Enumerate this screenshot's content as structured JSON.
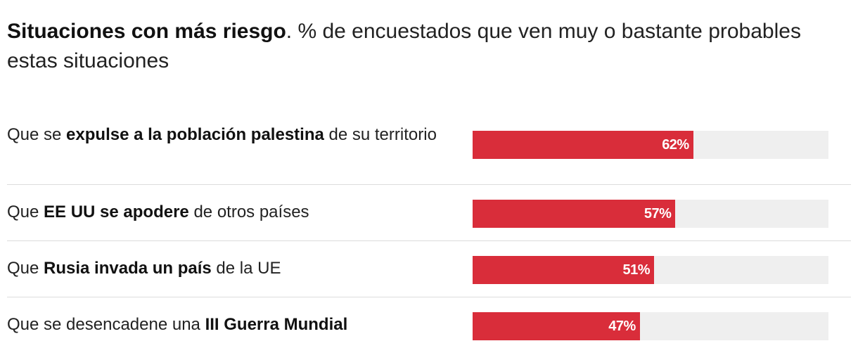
{
  "title": {
    "bold": "Situaciones con más riesgo",
    "rest": ". % de encuestados que ven muy o bastante probables estas situaciones"
  },
  "colors": {
    "bar": "#d92d3a",
    "track": "#efefef"
  },
  "chart_data": {
    "type": "bar",
    "orientation": "horizontal",
    "categories": [
      "Que se expulse a la población palestina de su territorio",
      "Que EE UU se apodere de otros países",
      "Que Rusia invada un país de la UE",
      "Que se desencadene una III Guerra Mundial"
    ],
    "values": [
      62,
      57,
      51,
      47
    ],
    "value_labels": [
      "62%",
      "57%",
      "51%",
      "47%"
    ],
    "xlim": [
      0,
      100
    ],
    "grid": false,
    "legend": "none",
    "label_parts": [
      {
        "pre": "Que se ",
        "bold": "expulse a la población palestina",
        "post": " de su territorio"
      },
      {
        "pre": "Que ",
        "bold": "EE UU se apodere",
        "post": " de otros países"
      },
      {
        "pre": "Que ",
        "bold": "Rusia invada un país",
        "post": " de la UE"
      },
      {
        "pre": "Que se desencadene una ",
        "bold": "III Guerra Mundial",
        "post": ""
      }
    ]
  }
}
